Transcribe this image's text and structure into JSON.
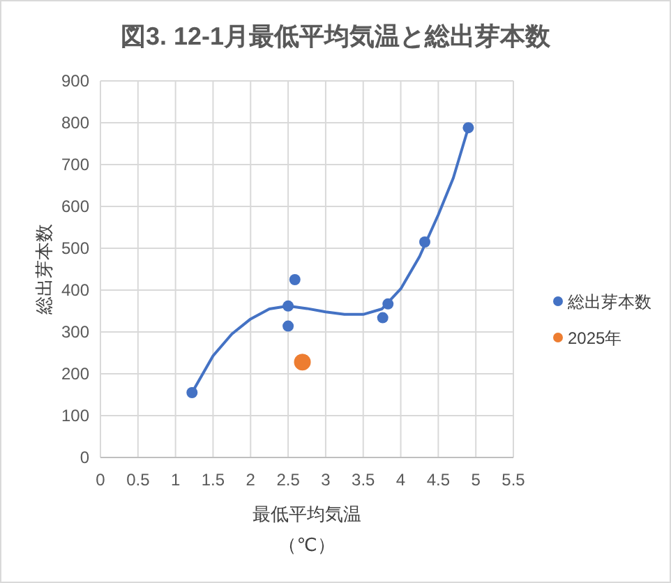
{
  "chart_data": {
    "type": "scatter",
    "title": "図3. 12-1月最低平均気温と総出芽本数",
    "xlabel": "最低平均気温（℃）",
    "ylabel": "総出芽本数",
    "xlim": [
      0,
      5.5
    ],
    "xticks": [
      0,
      0.5,
      1,
      1.5,
      2,
      2.5,
      3,
      3.5,
      4,
      4.5,
      5,
      5.5
    ],
    "ylim": [
      0,
      900
    ],
    "yticks": [
      0,
      100,
      200,
      300,
      400,
      500,
      600,
      700,
      800,
      900
    ],
    "grid": true,
    "legend": "right",
    "marker": "circle",
    "series": [
      {
        "type": "line",
        "marker": "none",
        "color": "#4472c4",
        "line_style": "solid",
        "x": [
          1.22,
          1.5,
          1.75,
          2.0,
          2.25,
          2.5,
          2.75,
          3.0,
          3.25,
          3.5,
          3.75,
          4.0,
          4.25,
          4.5,
          4.7,
          4.9
        ],
        "values": [
          155,
          243,
          295,
          331,
          355,
          362,
          356,
          348,
          342,
          342,
          355,
          403,
          480,
          580,
          668,
          788
        ]
      },
      {
        "name": "総出芽本数",
        "color": "#4472c4",
        "x": [
          1.22,
          2.5,
          2.59,
          2.5,
          3.76,
          3.83,
          4.32,
          4.9
        ],
        "values": [
          155,
          362,
          425,
          314,
          334,
          367,
          515,
          788
        ]
      },
      {
        "name": "2025年",
        "color": "#ed7d31",
        "x": [
          2.69
        ],
        "values": [
          228
        ]
      }
    ]
  }
}
